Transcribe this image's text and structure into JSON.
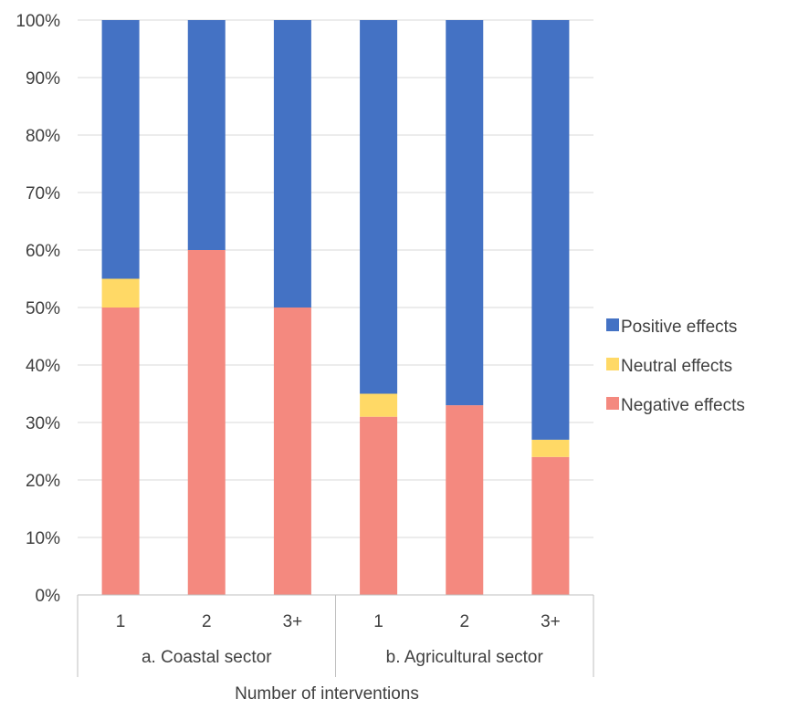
{
  "chart_data": {
    "type": "bar",
    "stacked": true,
    "xlabel": "Number of interventions",
    "ylabel": "",
    "ylim": [
      0,
      100
    ],
    "y_ticks": [
      "0%",
      "10%",
      "20%",
      "30%",
      "40%",
      "50%",
      "60%",
      "70%",
      "80%",
      "90%",
      "100%"
    ],
    "grid": true,
    "legend_position": "right",
    "groups": [
      {
        "label": "a. Coastal sector",
        "categories": [
          "1",
          "2",
          "3+"
        ]
      },
      {
        "label": "b. Agricultural sector",
        "categories": [
          "1",
          "2",
          "3+"
        ]
      }
    ],
    "categories": [
      "1",
      "2",
      "3+",
      "1",
      "2",
      "3+"
    ],
    "series": [
      {
        "name": "Negative effects",
        "color": "#f4897f",
        "values": [
          50,
          60,
          50,
          31,
          33,
          24
        ]
      },
      {
        "name": "Neutral effects",
        "color": "#ffd966",
        "values": [
          5,
          0,
          0,
          4,
          0,
          3
        ]
      },
      {
        "name": "Positive effects",
        "color": "#4472c4",
        "values": [
          45,
          40,
          50,
          65,
          67,
          73
        ]
      }
    ],
    "legend_order": [
      "Positive effects",
      "Neutral effects",
      "Negative effects"
    ]
  }
}
